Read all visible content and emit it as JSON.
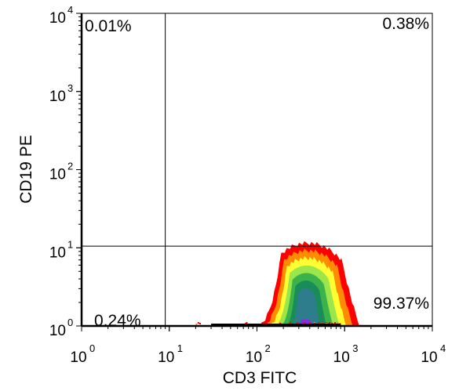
{
  "chart_data": {
    "type": "scatter",
    "subtype": "flow-cytometry-density",
    "xlabel": "CD3 FITC",
    "ylabel": "CD19 PE",
    "xscale": "log",
    "yscale": "log",
    "xlim": [
      1,
      10000
    ],
    "ylim": [
      1,
      10000
    ],
    "x_ticks": [
      {
        "base": "10",
        "exp": "0",
        "value": 1
      },
      {
        "base": "10",
        "exp": "1",
        "value": 10
      },
      {
        "base": "10",
        "exp": "2",
        "value": 100
      },
      {
        "base": "10",
        "exp": "3",
        "value": 1000
      },
      {
        "base": "10",
        "exp": "4",
        "value": 10000
      }
    ],
    "y_ticks": [
      {
        "base": "10",
        "exp": "0",
        "value": 1
      },
      {
        "base": "10",
        "exp": "1",
        "value": 10
      },
      {
        "base": "10",
        "exp": "2",
        "value": 100
      },
      {
        "base": "10",
        "exp": "3",
        "value": 1000
      },
      {
        "base": "10",
        "exp": "4",
        "value": 10000
      }
    ],
    "quadrant_gates": {
      "x": 9.0,
      "y": 10.5
    },
    "quadrants": {
      "upper_left": "0.01%",
      "upper_right": "0.38%",
      "lower_left": "0.24%",
      "lower_right": "99.37%"
    },
    "population": {
      "x_min": 55,
      "x_max": 900,
      "x_center": 350,
      "y_max": 11.5,
      "colors": [
        "#ff0000",
        "#ff8c00",
        "#ffff33",
        "#9be64b",
        "#3cb34a",
        "#1a8c5a",
        "#2e7d8c",
        "#8a2be2"
      ]
    }
  }
}
